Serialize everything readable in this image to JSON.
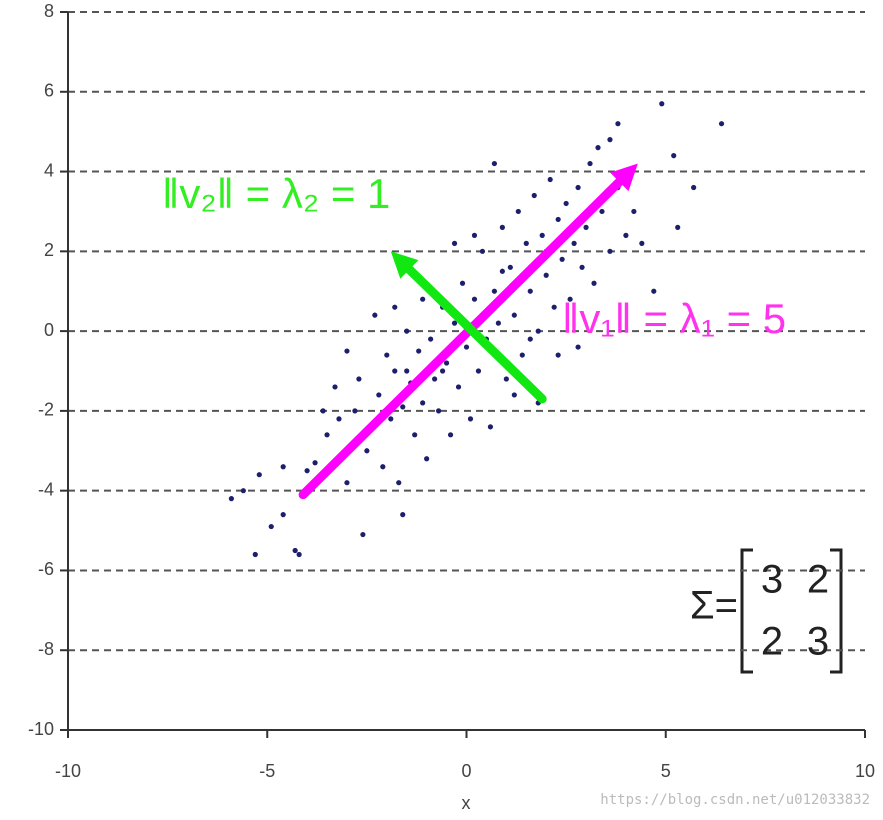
{
  "chart_data": {
    "type": "scatter",
    "xlabel": "x",
    "xlim": [
      -10,
      10
    ],
    "ylim": [
      -10,
      8
    ],
    "xticks": [
      -10,
      -5,
      0,
      5,
      10
    ],
    "yticks": [
      -10,
      -8,
      -6,
      -4,
      -2,
      0,
      2,
      4,
      6,
      8
    ],
    "grid": true,
    "series": [
      {
        "color": "#1c1f6b",
        "x": [
          6.4,
          4.9,
          5.2,
          5.7,
          5.3,
          -5.3,
          -4.2,
          -4.3,
          -2.6,
          -1.6,
          -5.9,
          -5.6,
          -5.2,
          3.8,
          3.6,
          3.3,
          0.7,
          -3.0,
          -4.6,
          -4.0,
          -4.9,
          -4.6,
          -3.8,
          -3.5,
          -3.2,
          -3.0,
          -2.8,
          -2.7,
          -2.5,
          -2.4,
          -2.2,
          -2.1,
          -2.0,
          -1.9,
          -1.8,
          -1.7,
          -1.6,
          -1.5,
          -1.4,
          -1.3,
          -1.2,
          -1.1,
          -1.0,
          -0.9,
          -0.8,
          -0.7,
          -0.6,
          -0.5,
          -0.4,
          -0.3,
          -0.2,
          -0.1,
          0.0,
          0.1,
          0.2,
          0.3,
          0.4,
          0.5,
          0.6,
          0.7,
          0.8,
          0.9,
          1.0,
          1.1,
          1.2,
          1.3,
          1.4,
          1.5,
          1.6,
          1.7,
          1.8,
          1.9,
          2.0,
          2.1,
          2.2,
          2.3,
          2.4,
          2.5,
          2.6,
          2.7,
          2.8,
          2.9,
          3.0,
          3.1,
          3.2,
          3.4,
          3.6,
          3.8,
          4.0,
          4.2,
          4.4,
          4.7,
          -0.3,
          0.2,
          -1.1,
          -1.8,
          -2.3,
          -3.3,
          -3.6,
          1.8,
          1.2,
          2.8,
          2.3,
          1.6,
          -0.6,
          0.5,
          -1.5,
          0.9,
          -2.9,
          2.0
        ],
        "y": [
          5.2,
          5.7,
          4.4,
          3.6,
          2.6,
          -5.6,
          -5.6,
          -5.5,
          -5.1,
          -4.6,
          -4.2,
          -4.0,
          -3.6,
          5.2,
          4.8,
          4.6,
          4.2,
          -0.5,
          -3.4,
          -3.5,
          -4.9,
          -4.6,
          -3.3,
          -2.6,
          -2.2,
          -3.8,
          -2.0,
          -1.2,
          -3.0,
          -2.4,
          -1.6,
          -3.4,
          -0.6,
          -2.2,
          -1.0,
          -3.8,
          -1.9,
          0.0,
          -1.3,
          -2.6,
          -0.5,
          -1.8,
          -3.2,
          -0.2,
          -1.2,
          -2.0,
          0.6,
          -0.8,
          -2.6,
          0.2,
          -1.4,
          1.2,
          -0.4,
          -2.2,
          0.8,
          -1.0,
          2.0,
          -0.2,
          -2.4,
          1.0,
          0.2,
          2.6,
          -1.2,
          1.6,
          0.4,
          3.0,
          -0.6,
          2.2,
          1.0,
          3.4,
          0.0,
          2.4,
          1.4,
          3.8,
          0.6,
          2.8,
          1.8,
          3.2,
          0.8,
          2.2,
          3.6,
          1.6,
          2.6,
          4.2,
          1.2,
          3.0,
          2.0,
          3.6,
          2.4,
          3.0,
          2.2,
          1.0,
          2.2,
          2.4,
          0.8,
          0.6,
          0.4,
          -1.4,
          -2.0,
          -1.8,
          -1.6,
          -0.4,
          -0.6,
          -0.2,
          -1.0,
          0.5,
          -1.0,
          1.5,
          -2.9,
          2.0
        ]
      }
    ],
    "arrows": [
      {
        "color": "#ff00ff",
        "x": [
          -4.1,
          4.3
        ],
        "y": [
          -4.1,
          4.2
        ]
      },
      {
        "color": "#11e811",
        "x": [
          1.9,
          -1.9
        ],
        "y": [
          -1.7,
          2.0
        ]
      }
    ],
    "annotations": [
      {
        "text": "‖v₂‖ = λ₂ = 1",
        "color": "#33ee22"
      },
      {
        "text": "‖v₁‖ = λ₁ = 5",
        "color": "#ff33ee"
      }
    ],
    "matrix": {
      "label": "Σ=",
      "rows": [
        [
          3,
          2
        ],
        [
          2,
          3
        ]
      ]
    }
  },
  "watermark": "https://blog.csdn.net/u012033832"
}
